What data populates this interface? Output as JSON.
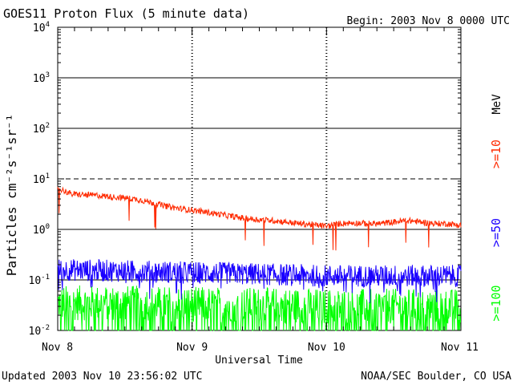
{
  "header": {
    "title": "GOES11 Proton Flux (5 minute data)",
    "begin": "Begin: 2003 Nov 8 0000 UTC"
  },
  "footer": {
    "updated": "Updated 2003 Nov 10 23:56:02 UTC",
    "credit": "NOAA/SEC Boulder, CO USA"
  },
  "colors": {
    "ge10": "#ff2a00",
    "ge50": "#1a00ff",
    "ge100": "#00ff00",
    "axis": "#000000"
  },
  "chart_data": {
    "type": "line",
    "title": "GOES11 Proton Flux (5 minute data)",
    "xlabel": "Universal Time",
    "ylabel": "Particles cm⁻²s⁻¹sr⁻¹",
    "yscale": "log",
    "ylim": [
      0.01,
      10000
    ],
    "xlim": [
      0,
      3
    ],
    "x_tick_labels": [
      "Nov 8",
      "Nov 9",
      "Nov 10",
      "Nov 11"
    ],
    "y_tick_labels": [
      {
        "base": "10",
        "exp": "-2"
      },
      {
        "base": "10",
        "exp": "-1"
      },
      {
        "base": "10",
        "exp": "0"
      },
      {
        "base": "10",
        "exp": "1"
      },
      {
        "base": "10",
        "exp": "2"
      },
      {
        "base": "10",
        "exp": "3"
      },
      {
        "base": "10",
        "exp": "4"
      }
    ],
    "reference_lines": [
      0.1,
      1,
      100,
      1000
    ],
    "dashed_reference_lines": [
      10
    ],
    "unit_label": "MeV",
    "series": [
      {
        "name": ">=10",
        "x": [
          0,
          0.05,
          0.1,
          0.2,
          0.3,
          0.4,
          0.5,
          0.6,
          0.7,
          0.8,
          0.9,
          1.0,
          1.1,
          1.2,
          1.3,
          1.4,
          1.5,
          1.6,
          1.7,
          1.8,
          1.9,
          2.0,
          2.1,
          2.2,
          2.3,
          2.4,
          2.5,
          2.6,
          2.7,
          2.8,
          2.9,
          3.0
        ],
        "values": [
          6.5,
          5.8,
          5.0,
          4.8,
          4.7,
          4.4,
          4.2,
          3.9,
          3.4,
          2.9,
          2.6,
          2.4,
          2.2,
          2.0,
          1.8,
          1.65,
          1.55,
          1.5,
          1.4,
          1.3,
          1.25,
          1.15,
          1.3,
          1.35,
          1.3,
          1.3,
          1.4,
          1.5,
          1.4,
          1.3,
          1.3,
          1.2
        ]
      },
      {
        "name": ">=50",
        "x": [
          0,
          0.5,
          1.0,
          1.5,
          2.0,
          2.5,
          3.0
        ],
        "values": [
          0.16,
          0.15,
          0.14,
          0.13,
          0.12,
          0.12,
          0.12
        ]
      },
      {
        "name": ">=100",
        "x": [
          0,
          0.5,
          1.0,
          1.5,
          2.0,
          2.5,
          3.0
        ],
        "values": [
          0.035,
          0.035,
          0.033,
          0.032,
          0.03,
          0.03,
          0.03
        ]
      }
    ]
  }
}
